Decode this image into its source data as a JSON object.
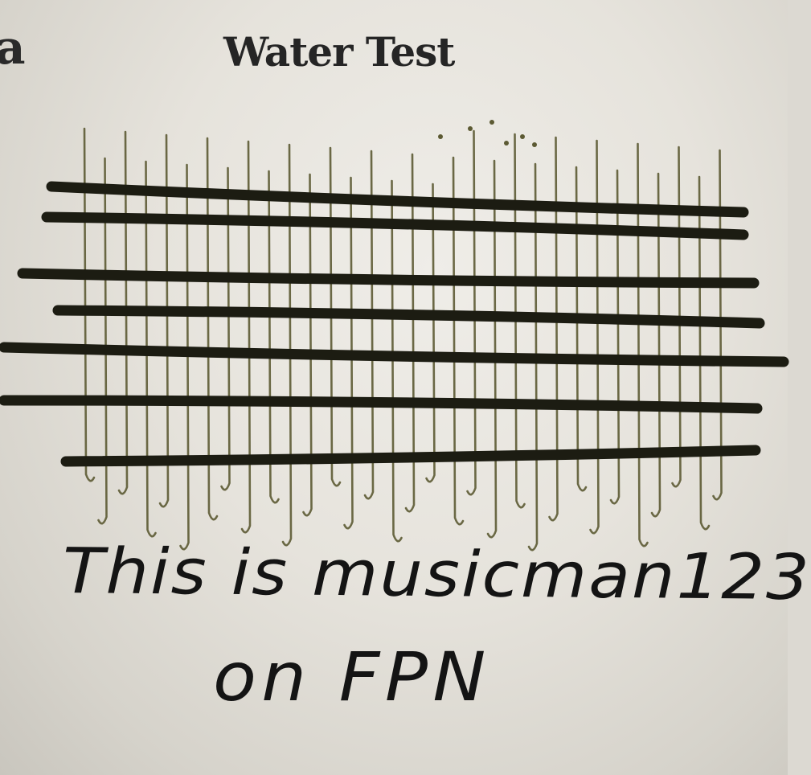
{
  "page": {
    "edge_fragment": "a",
    "heading": "Water Test"
  },
  "handwriting": {
    "line1": "This is musicman123",
    "line2": "on FPN"
  },
  "colors": {
    "paper": "#e6e3dc",
    "print_ink": "#252525",
    "pen_ink": "#1c1c12",
    "water_bleed": "#5c5a33"
  }
}
